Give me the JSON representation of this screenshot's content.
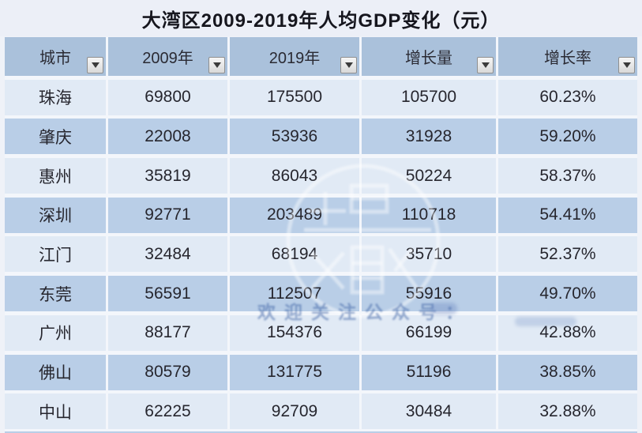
{
  "title": "大湾区2009-2019年人均GDP变化（元）",
  "colors": {
    "title_bg": "#eceff7",
    "header_bg": "#aac1db",
    "row_light": "#e1eaf5",
    "row_dark": "#b9cee7",
    "gap": "#f3f6fb",
    "text": "#26262e",
    "watermark_blue": "rgba(58,95,163,0.50)"
  },
  "table": {
    "columns": [
      {
        "key": "city",
        "label": "城市"
      },
      {
        "key": "y2009",
        "label": "2009年"
      },
      {
        "key": "y2019",
        "label": "2019年"
      },
      {
        "key": "growth",
        "label": "增长量"
      },
      {
        "key": "rate",
        "label": "增长率"
      }
    ],
    "filter_icon": "triangle-down",
    "rows": [
      {
        "city": "珠海",
        "y2009": "69800",
        "y2019": "175500",
        "growth": "105700",
        "rate": "60.23%"
      },
      {
        "city": "肇庆",
        "y2009": "22008",
        "y2019": "53936",
        "growth": "31928",
        "rate": "59.20%"
      },
      {
        "city": "惠州",
        "y2009": "35819",
        "y2019": "86043",
        "growth": "50224",
        "rate": "58.37%"
      },
      {
        "city": "深圳",
        "y2009": "92771",
        "y2019": "203489",
        "growth": "110718",
        "rate": "54.41%"
      },
      {
        "city": "江门",
        "y2009": "32484",
        "y2019": "68194",
        "growth": "35710",
        "rate": "52.37%"
      },
      {
        "city": "东莞",
        "y2009": "56591",
        "y2019": "112507",
        "growth": "55916",
        "rate": "49.70%"
      },
      {
        "city": "广州",
        "y2009": "88177",
        "y2019": "154376",
        "growth": "66199",
        "rate": "42.88%"
      },
      {
        "city": "佛山",
        "y2009": "80579",
        "y2019": "131775",
        "growth": "51196",
        "rate": "38.85%"
      },
      {
        "city": "中山",
        "y2009": "62225",
        "y2019": "92709",
        "growth": "30484",
        "rate": "32.88%"
      }
    ]
  },
  "watermark": {
    "text": "欢迎关注公众号："
  }
}
